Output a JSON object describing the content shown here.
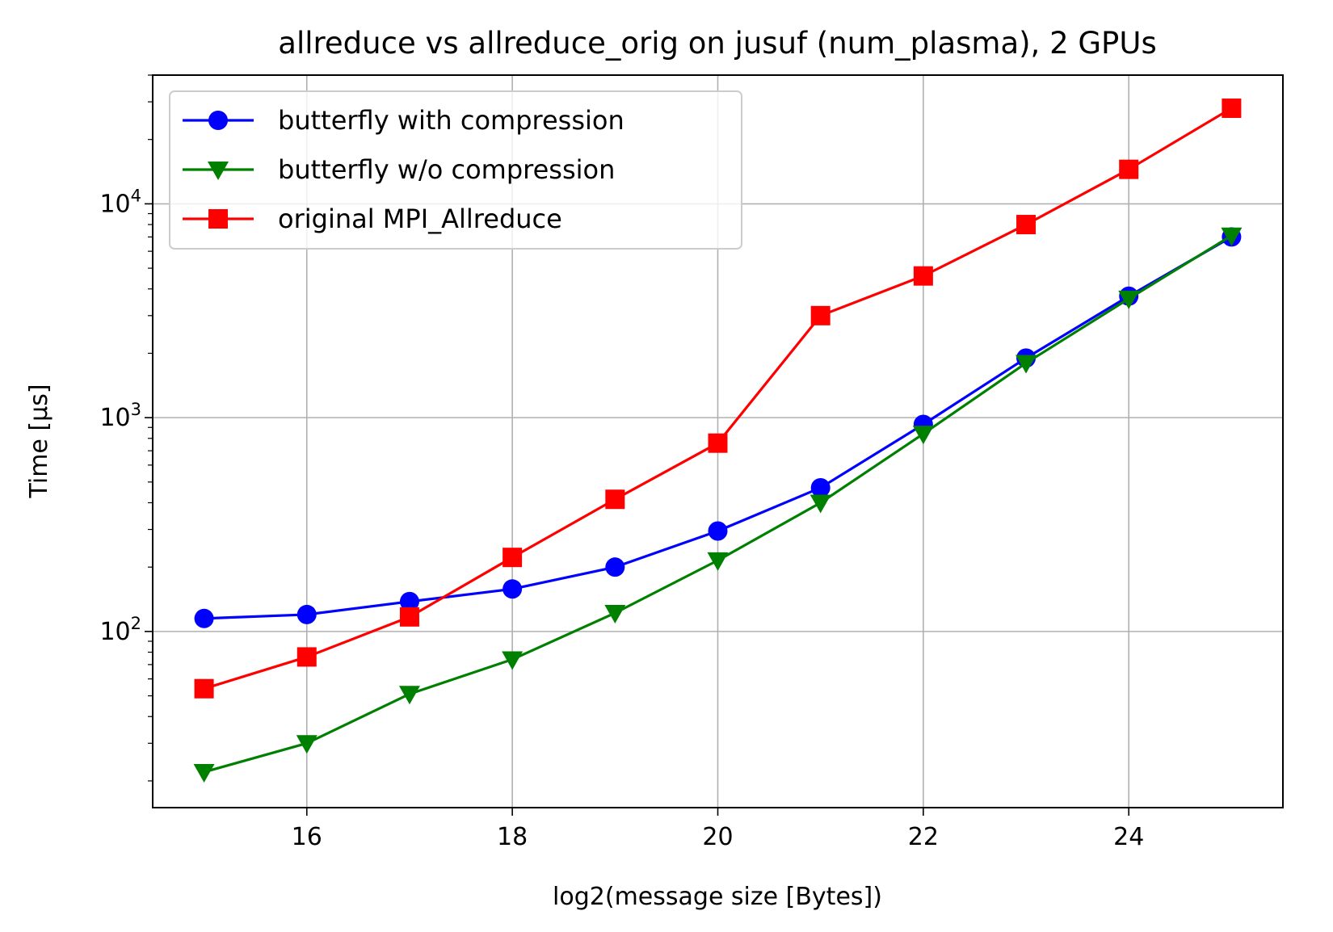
{
  "chart_data": {
    "type": "line",
    "title": "allreduce vs allreduce_orig on jusuf (num_plasma), 2 GPUs",
    "xlabel": "log2(message size [Bytes])",
    "ylabel": "Time [µs]",
    "xlim": [
      14.5,
      25.5
    ],
    "ylim": [
      15,
      40000
    ],
    "yscale": "log",
    "grid": true,
    "legend_position": "top-left",
    "x": [
      15,
      16,
      17,
      18,
      19,
      20,
      21,
      22,
      23,
      24,
      25
    ],
    "x_ticks": [
      16,
      18,
      20,
      22,
      24
    ],
    "y_ticks": [
      {
        "value": 100,
        "base": "10",
        "exp": "2"
      },
      {
        "value": 1000,
        "base": "10",
        "exp": "3"
      },
      {
        "value": 10000,
        "base": "10",
        "exp": "4"
      }
    ],
    "series": [
      {
        "name": "butterfly with compression",
        "color": "#0000ff",
        "marker": "circle",
        "values": [
          115,
          120,
          138,
          158,
          200,
          295,
          470,
          930,
          1900,
          3700,
          7000
        ]
      },
      {
        "name": "butterfly w/o compression",
        "color": "#008000",
        "marker": "triangle-down",
        "values": [
          22,
          30,
          51,
          74,
          122,
          215,
          400,
          840,
          1800,
          3600,
          7100
        ]
      },
      {
        "name": "original MPI_Allreduce",
        "color": "#ff0000",
        "marker": "square",
        "values": [
          54,
          76,
          117,
          222,
          415,
          760,
          3000,
          4600,
          8000,
          14500,
          28000
        ]
      }
    ]
  }
}
